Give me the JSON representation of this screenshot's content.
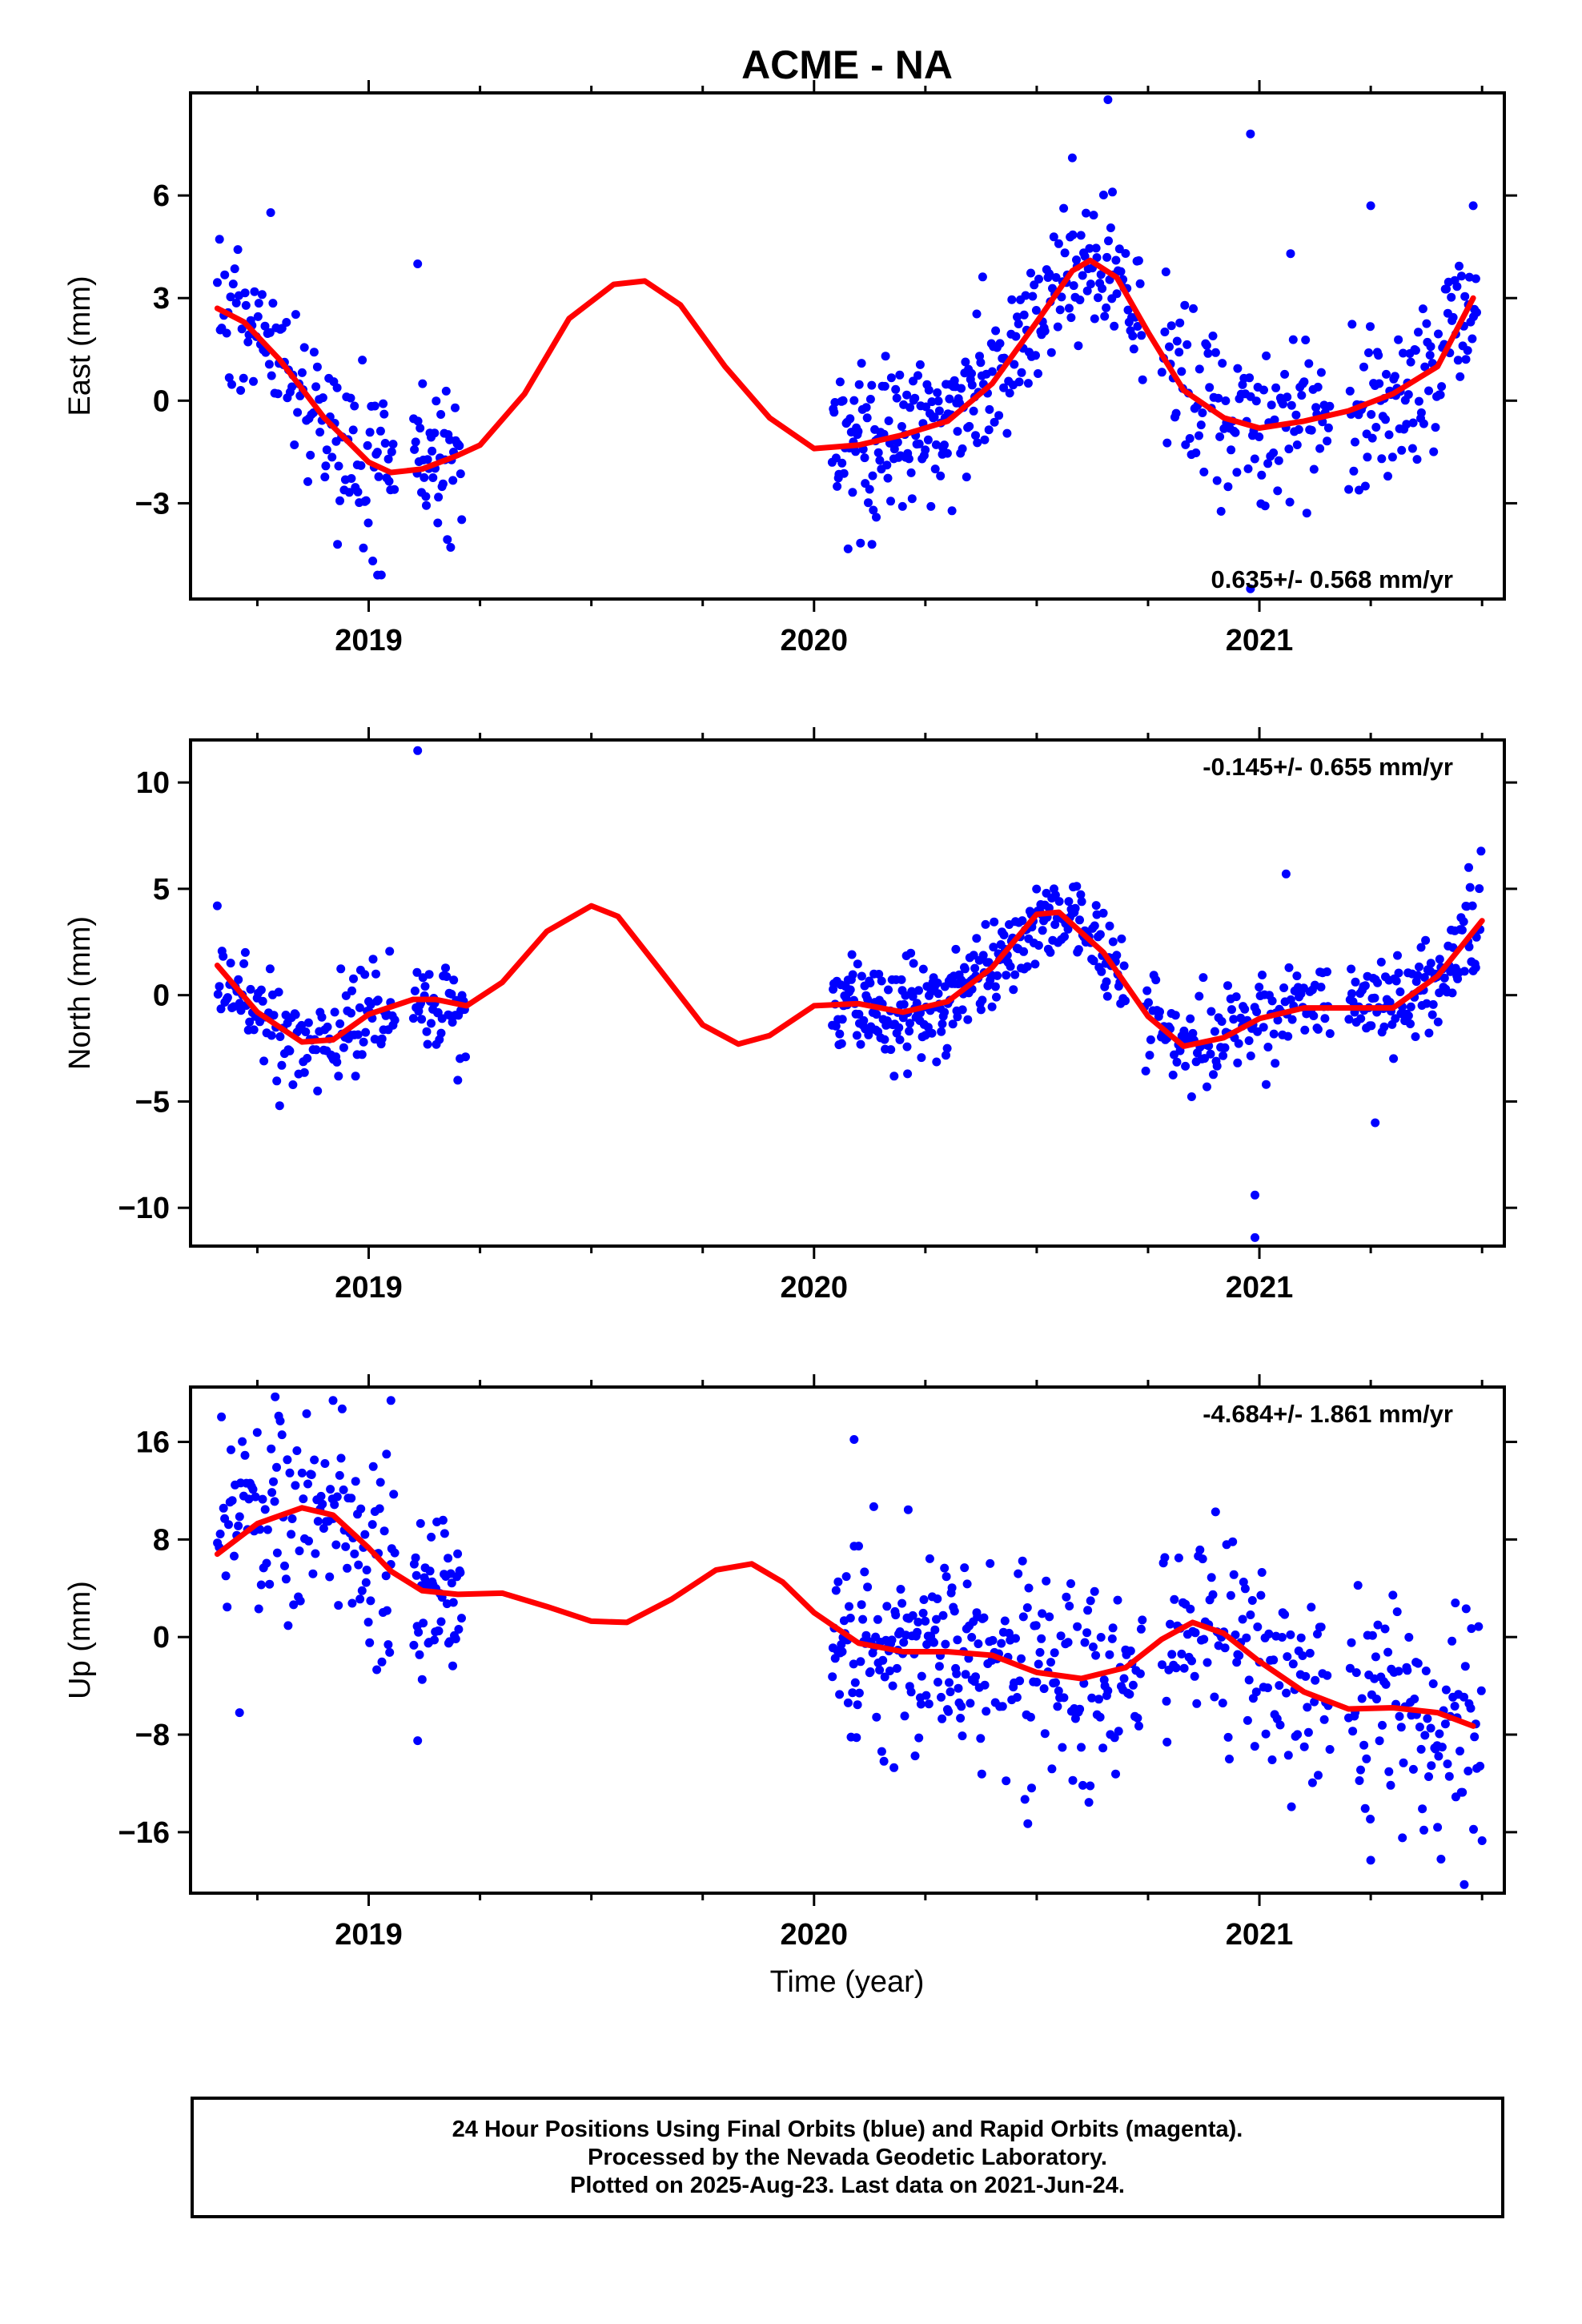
{
  "title": "ACME - NA",
  "xlabel": "Time (year)",
  "colors": {
    "points": "#0000ff",
    "fit": "#ff0000",
    "frame": "#000000"
  },
  "footer": {
    "line1": "24 Hour Positions Using Final Orbits (blue) and Rapid Orbits (magenta).",
    "line2": "Processed by the Nevada Geodetic Laboratory.",
    "line3": "Plotted on 2025-Aug-23. Last data on 2021-Jun-24."
  },
  "chart_data": [
    {
      "type": "scatter",
      "panel": "east",
      "ylabel": "East (mm)",
      "rate_label": "0.635+/- 0.568 mm/yr",
      "xlim": [
        2018.6,
        2021.55
      ],
      "ylim": [
        -5.8,
        9.0
      ],
      "x_ticks": [
        2019,
        2020,
        2021
      ],
      "y_ticks": [
        -3,
        0,
        3,
        6
      ],
      "fit": [
        [
          2018.66,
          2.7
        ],
        [
          2018.72,
          2.3
        ],
        [
          2018.8,
          1.2
        ],
        [
          2018.9,
          -0.5
        ],
        [
          2019.0,
          -1.8
        ],
        [
          2019.05,
          -2.1
        ],
        [
          2019.12,
          -2.0
        ],
        [
          2019.2,
          -1.6
        ],
        [
          2019.25,
          -1.3
        ],
        [
          2019.35,
          0.2
        ],
        [
          2019.45,
          2.4
        ],
        [
          2019.55,
          3.4
        ],
        [
          2019.62,
          3.5
        ],
        [
          2019.7,
          2.8
        ],
        [
          2019.8,
          1.0
        ],
        [
          2019.9,
          -0.5
        ],
        [
          2020.0,
          -1.4
        ],
        [
          2020.1,
          -1.3
        ],
        [
          2020.2,
          -1.0
        ],
        [
          2020.3,
          -0.6
        ],
        [
          2020.4,
          0.5
        ],
        [
          2020.5,
          2.3
        ],
        [
          2020.58,
          3.8
        ],
        [
          2020.62,
          4.1
        ],
        [
          2020.68,
          3.6
        ],
        [
          2020.75,
          2.0
        ],
        [
          2020.83,
          0.3
        ],
        [
          2020.92,
          -0.5
        ],
        [
          2021.0,
          -0.8
        ],
        [
          2021.1,
          -0.6
        ],
        [
          2021.2,
          -0.3
        ],
        [
          2021.3,
          0.2
        ],
        [
          2021.4,
          1.0
        ],
        [
          2021.48,
          3.0
        ]
      ],
      "segments": [
        {
          "t0": 2018.66,
          "t1": 2018.9,
          "n": 75,
          "spread": 1.1
        },
        {
          "t0": 2018.9,
          "t1": 2019.06,
          "n": 55,
          "spread": 1.3
        },
        {
          "t0": 2019.1,
          "t1": 2019.21,
          "n": 45,
          "spread": 0.9
        },
        {
          "t0": 2020.04,
          "t1": 2020.38,
          "n": 150,
          "spread": 1.2
        },
        {
          "t0": 2020.38,
          "t1": 2020.74,
          "n": 130,
          "spread": 1.0
        },
        {
          "t0": 2020.78,
          "t1": 2021.16,
          "n": 120,
          "spread": 1.2
        },
        {
          "t0": 2021.2,
          "t1": 2021.49,
          "n": 110,
          "spread": 1.1
        }
      ],
      "outliers": [
        [
          2018.78,
          5.5
        ],
        [
          2019.11,
          4.0
        ],
        [
          2019.02,
          -5.1
        ],
        [
          2018.93,
          -4.2
        ],
        [
          2020.13,
          -4.2
        ],
        [
          2020.58,
          7.1
        ],
        [
          2020.66,
          8.8
        ],
        [
          2020.67,
          6.1
        ],
        [
          2020.98,
          7.8
        ],
        [
          2021.07,
          4.3
        ],
        [
          2021.25,
          5.7
        ],
        [
          2021.48,
          5.7
        ],
        [
          2020.98,
          -5.5
        ]
      ]
    },
    {
      "type": "scatter",
      "panel": "north",
      "ylabel": "North (mm)",
      "rate_label": "-0.145+/- 0.655 mm/yr",
      "xlim": [
        2018.6,
        2021.55
      ],
      "ylim": [
        -11.8,
        12.0
      ],
      "x_ticks": [
        2019,
        2020,
        2021
      ],
      "y_ticks": [
        -10,
        -5,
        0,
        5,
        10
      ],
      "fit": [
        [
          2018.66,
          1.4
        ],
        [
          2018.75,
          -0.8
        ],
        [
          2018.85,
          -2.2
        ],
        [
          2018.92,
          -2.1
        ],
        [
          2019.0,
          -0.9
        ],
        [
          2019.1,
          -0.2
        ],
        [
          2019.15,
          -0.2
        ],
        [
          2019.22,
          -0.5
        ],
        [
          2019.3,
          0.6
        ],
        [
          2019.4,
          3.0
        ],
        [
          2019.5,
          4.2
        ],
        [
          2019.56,
          3.7
        ],
        [
          2019.65,
          1.3
        ],
        [
          2019.75,
          -1.4
        ],
        [
          2019.83,
          -2.3
        ],
        [
          2019.9,
          -1.9
        ],
        [
          2020.0,
          -0.5
        ],
        [
          2020.1,
          -0.4
        ],
        [
          2020.2,
          -0.8
        ],
        [
          2020.3,
          -0.3
        ],
        [
          2020.4,
          1.3
        ],
        [
          2020.5,
          3.8
        ],
        [
          2020.55,
          3.9
        ],
        [
          2020.65,
          2.0
        ],
        [
          2020.75,
          -1.0
        ],
        [
          2020.83,
          -2.4
        ],
        [
          2020.92,
          -2.0
        ],
        [
          2021.0,
          -1.1
        ],
        [
          2021.1,
          -0.6
        ],
        [
          2021.2,
          -0.6
        ],
        [
          2021.3,
          -0.6
        ],
        [
          2021.4,
          0.9
        ],
        [
          2021.5,
          3.5
        ]
      ],
      "segments": [
        {
          "t0": 2018.66,
          "t1": 2018.92,
          "n": 80,
          "spread": 1.1
        },
        {
          "t0": 2018.92,
          "t1": 2019.06,
          "n": 50,
          "spread": 1.1
        },
        {
          "t0": 2019.1,
          "t1": 2019.22,
          "n": 45,
          "spread": 1.1
        },
        {
          "t0": 2020.04,
          "t1": 2020.36,
          "n": 150,
          "spread": 1.2
        },
        {
          "t0": 2020.36,
          "t1": 2020.7,
          "n": 140,
          "spread": 1.0
        },
        {
          "t0": 2020.74,
          "t1": 2021.16,
          "n": 130,
          "spread": 1.1
        },
        {
          "t0": 2021.2,
          "t1": 2021.5,
          "n": 120,
          "spread": 1.2
        }
      ],
      "outliers": [
        [
          2018.66,
          4.2
        ],
        [
          2019.11,
          11.5
        ],
        [
          2018.8,
          -5.2
        ],
        [
          2020.21,
          -3.7
        ],
        [
          2021.06,
          5.7
        ],
        [
          2020.99,
          -9.4
        ],
        [
          2020.99,
          -11.4
        ],
        [
          2021.26,
          -6.0
        ],
        [
          2021.47,
          6.0
        ],
        [
          2019.2,
          -4.0
        ]
      ]
    },
    {
      "type": "scatter",
      "panel": "up",
      "ylabel": "Up (mm)",
      "rate_label": "-4.684+/- 1.861 mm/yr",
      "xlim": [
        2018.6,
        2021.55
      ],
      "ylim": [
        -21.0,
        20.5
      ],
      "x_ticks": [
        2019,
        2020,
        2021
      ],
      "y_ticks": [
        -16,
        -8,
        0,
        8,
        16
      ],
      "fit": [
        [
          2018.66,
          6.8
        ],
        [
          2018.75,
          9.3
        ],
        [
          2018.85,
          10.6
        ],
        [
          2018.92,
          10.0
        ],
        [
          2019.0,
          7.3
        ],
        [
          2019.05,
          5.4
        ],
        [
          2019.12,
          3.8
        ],
        [
          2019.2,
          3.5
        ],
        [
          2019.3,
          3.6
        ],
        [
          2019.4,
          2.5
        ],
        [
          2019.5,
          1.3
        ],
        [
          2019.58,
          1.2
        ],
        [
          2019.68,
          3.1
        ],
        [
          2019.78,
          5.5
        ],
        [
          2019.86,
          6.0
        ],
        [
          2019.93,
          4.5
        ],
        [
          2020.0,
          2.0
        ],
        [
          2020.1,
          -0.5
        ],
        [
          2020.2,
          -1.2
        ],
        [
          2020.3,
          -1.2
        ],
        [
          2020.4,
          -1.5
        ],
        [
          2020.5,
          -2.9
        ],
        [
          2020.6,
          -3.4
        ],
        [
          2020.7,
          -2.5
        ],
        [
          2020.78,
          -0.2
        ],
        [
          2020.85,
          1.2
        ],
        [
          2020.92,
          0.3
        ],
        [
          2021.0,
          -2.0
        ],
        [
          2021.1,
          -4.5
        ],
        [
          2021.2,
          -5.9
        ],
        [
          2021.3,
          -5.8
        ],
        [
          2021.4,
          -6.2
        ],
        [
          2021.48,
          -7.3
        ]
      ],
      "segments": [
        {
          "t0": 2018.66,
          "t1": 2018.92,
          "n": 85,
          "spread": 4.2
        },
        {
          "t0": 2018.92,
          "t1": 2019.06,
          "n": 50,
          "spread": 3.8
        },
        {
          "t0": 2019.1,
          "t1": 2019.21,
          "n": 50,
          "spread": 3.5
        },
        {
          "t0": 2020.04,
          "t1": 2020.38,
          "n": 150,
          "spread": 4.2
        },
        {
          "t0": 2020.38,
          "t1": 2020.74,
          "n": 120,
          "spread": 4.2
        },
        {
          "t0": 2020.78,
          "t1": 2021.16,
          "n": 120,
          "spread": 4.5
        },
        {
          "t0": 2021.2,
          "t1": 2021.5,
          "n": 100,
          "spread": 4.8
        }
      ],
      "outliers": [
        [
          2018.79,
          19.7
        ],
        [
          2018.92,
          19.4
        ],
        [
          2019.05,
          19.4
        ],
        [
          2019.04,
          15.0
        ],
        [
          2018.71,
          -6.2
        ],
        [
          2019.11,
          -8.5
        ],
        [
          2020.09,
          16.2
        ],
        [
          2020.48,
          -15.3
        ],
        [
          2020.62,
          -12.2
        ],
        [
          2021.25,
          -18.3
        ],
        [
          2021.46,
          -20.3
        ],
        [
          2021.4,
          -15.6
        ],
        [
          2021.44,
          2.8
        ],
        [
          2021.5,
          -16.7
        ]
      ]
    }
  ]
}
